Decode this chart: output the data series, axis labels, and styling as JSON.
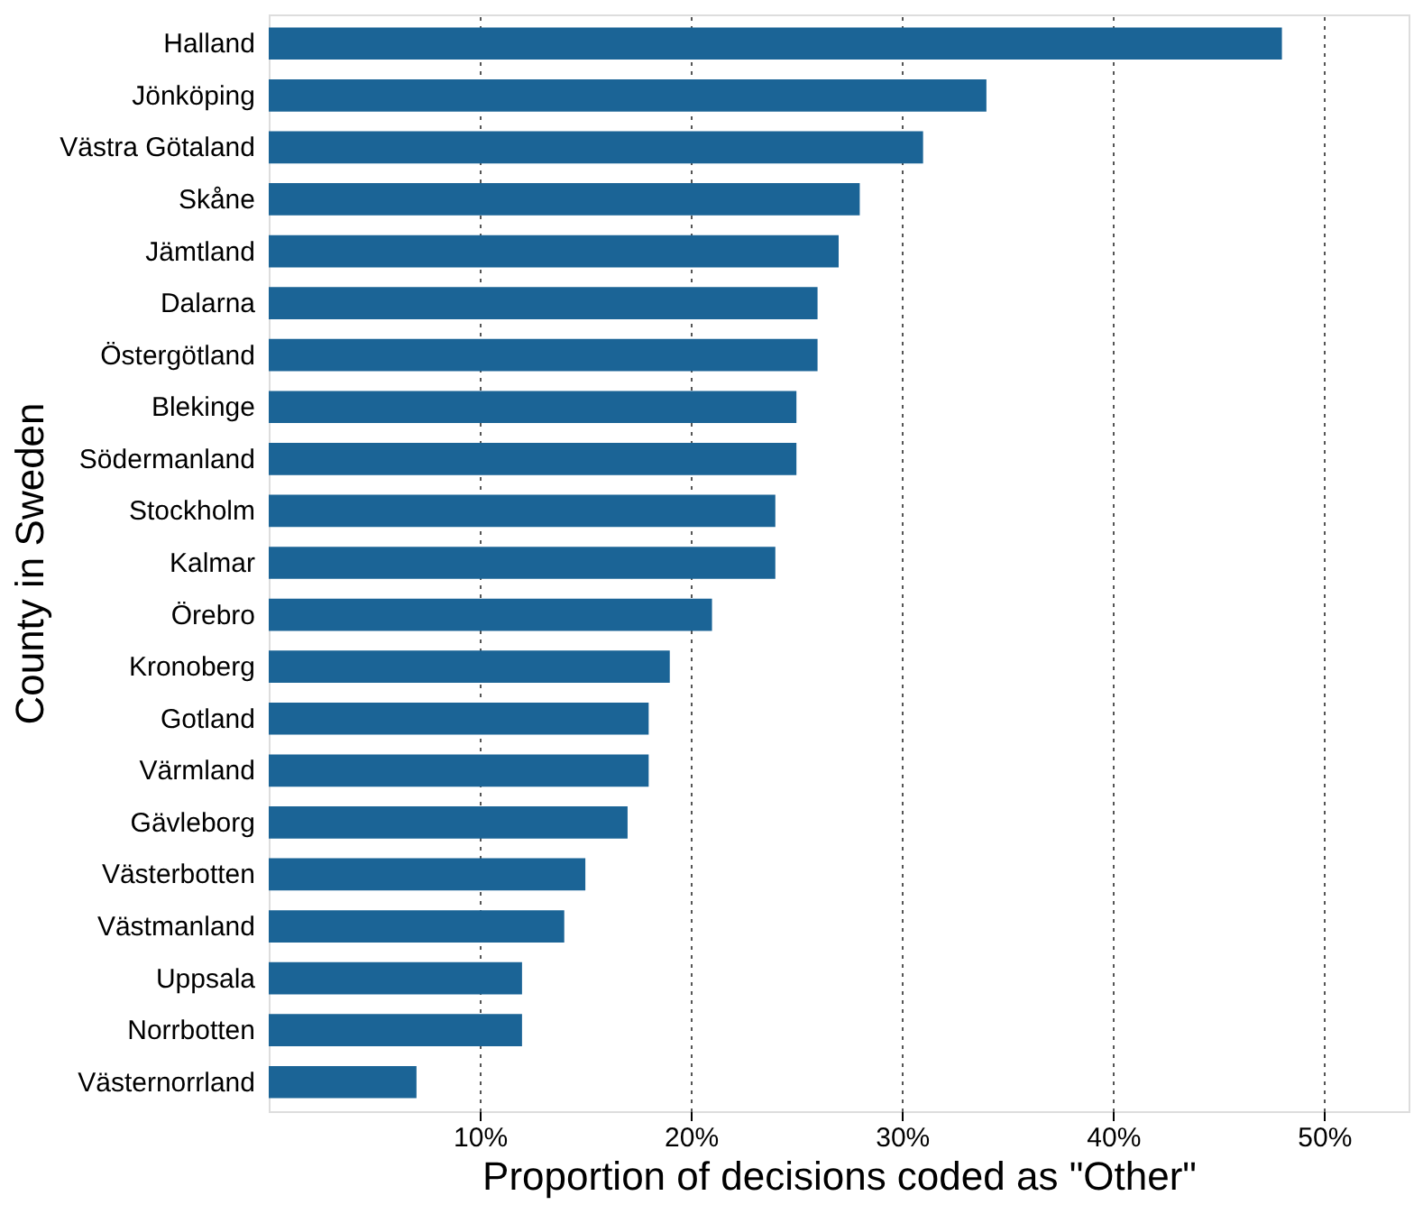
{
  "chart_data": {
    "type": "bar",
    "orientation": "horizontal",
    "xlabel": "Proportion of decisions coded as \"Other\"",
    "ylabel": "County in Sweden",
    "categories": [
      "Halland",
      "Jönköping",
      "Västra Götaland",
      "Skåne",
      "Jämtland",
      "Dalarna",
      "Östergötland",
      "Blekinge",
      "Södermanland",
      "Stockholm",
      "Kalmar",
      "Örebro",
      "Kronoberg",
      "Gotland",
      "Värmland",
      "Gävleborg",
      "Västerbotten",
      "Västmanland",
      "Uppsala",
      "Norrbotten",
      "Västernorrland"
    ],
    "values": [
      48,
      34,
      31,
      28,
      27,
      26,
      26,
      25,
      25,
      24,
      24,
      21,
      19,
      18,
      18,
      17,
      15,
      14,
      12,
      12,
      7
    ],
    "color": "#1b6496",
    "xlim": [
      0,
      54
    ],
    "xticks": [
      {
        "value": 10,
        "label": "10%"
      },
      {
        "value": 20,
        "label": "20%"
      },
      {
        "value": 30,
        "label": "30%"
      },
      {
        "value": 40,
        "label": "40%"
      },
      {
        "value": 50,
        "label": "50%"
      }
    ],
    "grid": "x"
  }
}
